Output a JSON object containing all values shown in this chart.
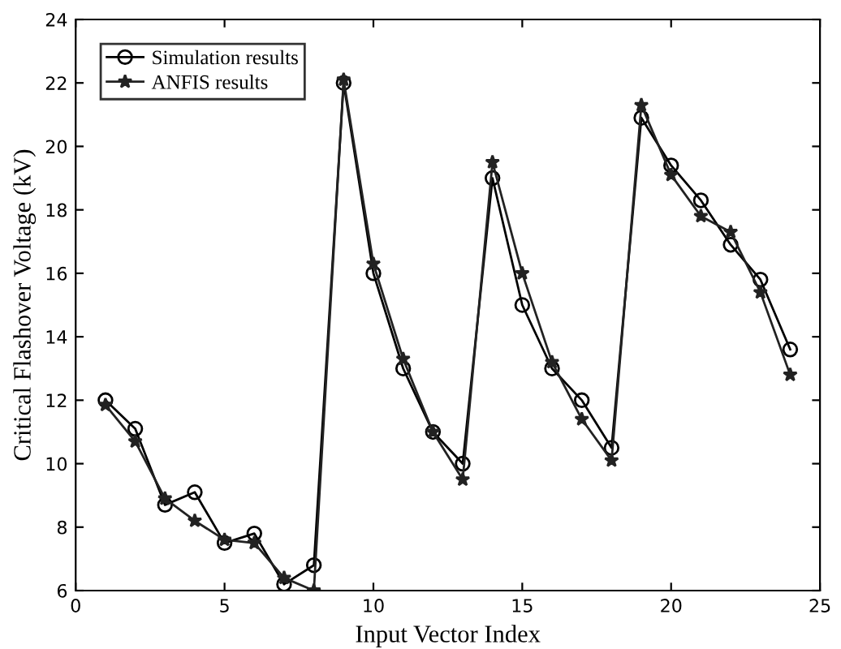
{
  "chart_data": {
    "type": "line",
    "xlabel": "Input Vector Index",
    "ylabel": "Critical Flashover Voltage (kV)",
    "x": [
      1,
      2,
      3,
      4,
      5,
      6,
      7,
      8,
      9,
      10,
      11,
      12,
      13,
      14,
      15,
      16,
      17,
      18,
      19,
      20,
      21,
      22,
      23,
      24
    ],
    "series": [
      {
        "name": "Simulation results",
        "color": "#000000",
        "marker": "circle",
        "values": [
          12,
          11.1,
          8.7,
          9.1,
          7.5,
          7.8,
          6.2,
          6.8,
          22,
          16,
          13,
          11,
          10,
          19,
          15,
          13,
          12,
          10.5,
          20.9,
          19.4,
          18.3,
          16.9,
          15.8,
          13.6
        ]
      },
      {
        "name": "ANFIS results",
        "color": "#222222",
        "marker": "star",
        "values": [
          11.85,
          10.7,
          8.9,
          8.2,
          7.6,
          7.5,
          6.4,
          6.0,
          22.1,
          16.3,
          13.3,
          11,
          9.5,
          19.5,
          16,
          13.2,
          11.4,
          10.1,
          21.3,
          19.1,
          17.8,
          17.3,
          15.4,
          12.8
        ]
      }
    ],
    "xlim": [
      0,
      25
    ],
    "xticks": [
      0,
      5,
      10,
      15,
      20,
      25
    ],
    "ylim": [
      6,
      24
    ],
    "yticks": [
      6,
      8,
      10,
      12,
      14,
      16,
      18,
      20,
      22,
      24
    ],
    "grid": false,
    "legend": "top left",
    "line_style": "solid"
  }
}
